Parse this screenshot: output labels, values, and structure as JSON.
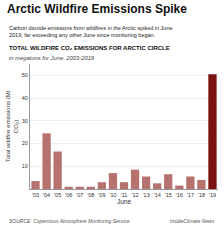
{
  "chart_data": {
    "type": "bar",
    "title": "Arctic Wildfire Emissions Spike",
    "subtitle": "Carbon dioxide emissions from wildfires in the Arctic spiked in June\n2019, far exceeding any other June since monitoring began.",
    "annotations": [
      "TOTAL WILDFIRE CO₂ EMISSIONS FOR ARCTIC CIRCLE",
      "in megatons for June, 2003-2019",
      "SOURCE: Copernicus Atmosphere Monitoring Service",
      "InsideClimate News"
    ],
    "xlabel": "June",
    "ylabel": "Total wildfire emissions (Mt\nCO₂)",
    "categories": [
      "'03",
      "'04",
      "'05",
      "'06",
      "'07",
      "'08",
      "'09",
      "'10",
      "'11",
      "'12",
      "'13",
      "'14",
      "'15",
      "'16",
      "'17",
      "'18",
      "'19"
    ],
    "values": [
      3.5,
      24.5,
      16.5,
      1.0,
      1.0,
      1.0,
      3.0,
      7.0,
      3.0,
      8.5,
      5.5,
      2.5,
      6.5,
      1.5,
      5.5,
      4.0,
      50.5
    ],
    "colors": [
      "#b5726e",
      "#b5726e",
      "#b5726e",
      "#b5726e",
      "#b5726e",
      "#b5726e",
      "#b5726e",
      "#b5726e",
      "#b5726e",
      "#b5726e",
      "#b5726e",
      "#b5726e",
      "#b5726e",
      "#b5726e",
      "#b5726e",
      "#b5726e",
      "#7a1212"
    ],
    "ylim": [
      0,
      55
    ],
    "yticks": [
      10,
      20,
      30,
      40,
      50
    ],
    "grid": true
  }
}
